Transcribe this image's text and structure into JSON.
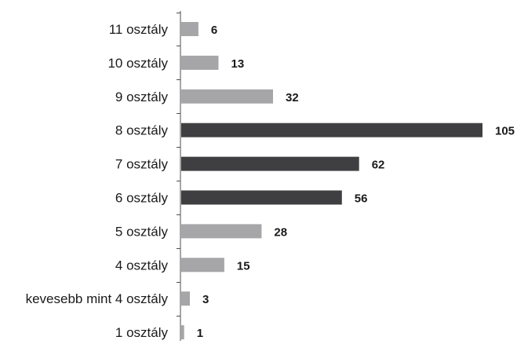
{
  "chart_data": {
    "type": "bar",
    "orientation": "horizontal",
    "categories": [
      "11 osztály",
      "10 osztály",
      "9 osztály",
      "8 osztály",
      "7 osztály",
      "6 osztály",
      "5 osztály",
      "4 osztály",
      "kevesebb mint 4 osztály",
      "1 osztály"
    ],
    "values": [
      6,
      13,
      32,
      105,
      62,
      56,
      28,
      15,
      3,
      1
    ],
    "highlighted": [
      false,
      false,
      false,
      true,
      true,
      true,
      false,
      false,
      false,
      false
    ],
    "title": "",
    "xlabel": "",
    "ylabel": "",
    "xlim": [
      0,
      105
    ],
    "grid": false,
    "legend": "none",
    "colors": {
      "normal": "#a6a6a8",
      "highlight": "#3f3f41",
      "axis": "#4d4d4d",
      "text": "#1a1a1a"
    }
  }
}
